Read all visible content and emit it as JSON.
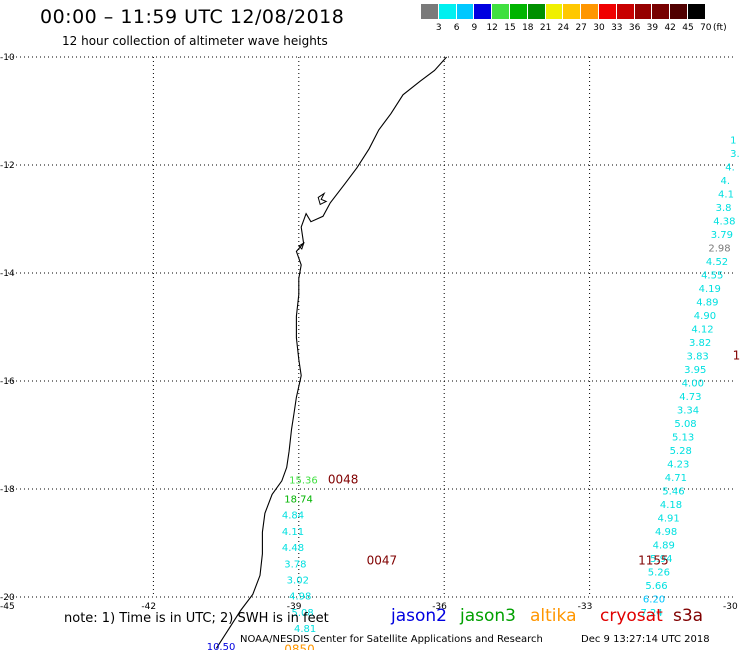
{
  "header": {
    "title": "00:00 – 11:59 UTC 12/08/2018",
    "subtitle": "12 hour collection of altimeter wave heights"
  },
  "colorbar": {
    "labels": [
      "3",
      "6",
      "9",
      "12",
      "15",
      "18",
      "21",
      "24",
      "27",
      "30",
      "33",
      "36",
      "39",
      "42",
      "45",
      "70"
    ],
    "unit": "(ft)",
    "colors": [
      "#7a7a7a",
      "#00f0f0",
      "#00c8ff",
      "#0000e0",
      "#40e040",
      "#00b400",
      "#009000",
      "#f0f000",
      "#ffc800",
      "#ff9600",
      "#f00000",
      "#c80000",
      "#960000",
      "#780000",
      "#500000",
      "#000000"
    ]
  },
  "map": {
    "lat_ticks": [
      "-10",
      "-12",
      "-14",
      "-16",
      "-18",
      "-20"
    ],
    "lon_ticks": [
      "-45",
      "-42",
      "-39",
      "-36",
      "-33",
      "-30"
    ],
    "lon_range": [
      -45,
      -30
    ],
    "lat_range": [
      -20,
      -10
    ],
    "grid": "dotted"
  },
  "observations": [
    {
      "lon": -30.1,
      "lat": -11.6,
      "text": "1",
      "color": "#00e0e0"
    },
    {
      "lon": -30.1,
      "lat": -11.85,
      "text": "3.",
      "color": "#00e0e0"
    },
    {
      "lon": -30.2,
      "lat": -12.1,
      "text": "4.",
      "color": "#00e0e0"
    },
    {
      "lon": -30.3,
      "lat": -12.35,
      "text": "4.",
      "color": "#00e0e0"
    },
    {
      "lon": -30.35,
      "lat": -12.6,
      "text": "4.1",
      "color": "#00e0e0"
    },
    {
      "lon": -30.4,
      "lat": -12.85,
      "text": "3.8",
      "color": "#00e0e0"
    },
    {
      "lon": -30.45,
      "lat": -13.1,
      "text": "4.38",
      "color": "#00e0e0"
    },
    {
      "lon": -30.5,
      "lat": -13.35,
      "text": "3.79",
      "color": "#00e0e0"
    },
    {
      "lon": -30.55,
      "lat": -13.6,
      "text": "2.98",
      "color": "#7a7a7a"
    },
    {
      "lon": -30.6,
      "lat": -13.85,
      "text": "4.52",
      "color": "#00e0e0"
    },
    {
      "lon": -30.7,
      "lat": -14.1,
      "text": "4.55",
      "color": "#00e0e0"
    },
    {
      "lon": -30.75,
      "lat": -14.35,
      "text": "4.19",
      "color": "#00e0e0"
    },
    {
      "lon": -30.8,
      "lat": -14.6,
      "text": "4.89",
      "color": "#00e0e0"
    },
    {
      "lon": -30.85,
      "lat": -14.85,
      "text": "4.90",
      "color": "#00e0e0"
    },
    {
      "lon": -30.9,
      "lat": -15.1,
      "text": "4.12",
      "color": "#00e0e0"
    },
    {
      "lon": -30.95,
      "lat": -15.35,
      "text": "3.82",
      "color": "#00e0e0"
    },
    {
      "lon": -31.0,
      "lat": -15.6,
      "text": "3.83",
      "color": "#00e0e0"
    },
    {
      "lon": -31.05,
      "lat": -15.85,
      "text": "3.95",
      "color": "#00e0e0"
    },
    {
      "lon": -31.1,
      "lat": -16.1,
      "text": "4.00",
      "color": "#00e0e0"
    },
    {
      "lon": -31.15,
      "lat": -16.35,
      "text": "4.73",
      "color": "#00e0e0"
    },
    {
      "lon": -31.2,
      "lat": -16.6,
      "text": "3.34",
      "color": "#00e0e0"
    },
    {
      "lon": -31.25,
      "lat": -16.85,
      "text": "5.08",
      "color": "#00e0e0"
    },
    {
      "lon": -31.3,
      "lat": -17.1,
      "text": "5.13",
      "color": "#00e0e0"
    },
    {
      "lon": -31.35,
      "lat": -17.35,
      "text": "5.28",
      "color": "#00e0e0"
    },
    {
      "lon": -31.4,
      "lat": -17.6,
      "text": "4.23",
      "color": "#00e0e0"
    },
    {
      "lon": -31.45,
      "lat": -17.85,
      "text": "4.71",
      "color": "#00e0e0"
    },
    {
      "lon": -31.5,
      "lat": -18.1,
      "text": "5.46",
      "color": "#00e0e0"
    },
    {
      "lon": -31.55,
      "lat": -18.35,
      "text": "4.18",
      "color": "#00e0e0"
    },
    {
      "lon": -31.6,
      "lat": -18.6,
      "text": "4.91",
      "color": "#00e0e0"
    },
    {
      "lon": -31.65,
      "lat": -18.85,
      "text": "4.98",
      "color": "#00e0e0"
    },
    {
      "lon": -31.7,
      "lat": -19.1,
      "text": "4.89",
      "color": "#00e0e0"
    },
    {
      "lon": -31.75,
      "lat": -19.35,
      "text": "5.94",
      "color": "#00e0e0"
    },
    {
      "lon": -31.8,
      "lat": -19.6,
      "text": "5.26",
      "color": "#00e0e0"
    },
    {
      "lon": -31.85,
      "lat": -19.85,
      "text": "5.66",
      "color": "#00e0e0"
    },
    {
      "lon": -31.9,
      "lat": -20.1,
      "text": "6.20",
      "color": "#00c8ff"
    },
    {
      "lon": -31.95,
      "lat": -20.35,
      "text": "7.24",
      "color": "#00e0e0"
    },
    {
      "lon": -39.2,
      "lat": -17.9,
      "text": "15.36",
      "color": "#40e040"
    },
    {
      "lon": -39.3,
      "lat": -18.25,
      "text": "18.74",
      "color": "#00b400"
    },
    {
      "lon": -39.35,
      "lat": -18.55,
      "text": "4.84",
      "color": "#00e0e0"
    },
    {
      "lon": -39.35,
      "lat": -18.85,
      "text": "4.11",
      "color": "#00e0e0"
    },
    {
      "lon": -39.35,
      "lat": -19.15,
      "text": "4.48",
      "color": "#00e0e0"
    },
    {
      "lon": -39.3,
      "lat": -19.45,
      "text": "3.78",
      "color": "#00e0e0"
    },
    {
      "lon": -39.25,
      "lat": -19.75,
      "text": "3.02",
      "color": "#00e0e0"
    },
    {
      "lon": -39.2,
      "lat": -20.05,
      "text": "4.98",
      "color": "#00e0e0"
    },
    {
      "lon": -39.15,
      "lat": -20.35,
      "text": "5.08",
      "color": "#00e0e0"
    },
    {
      "lon": -39.1,
      "lat": -20.65,
      "text": "4.81",
      "color": "#00e0e0"
    },
    {
      "lon": -40.9,
      "lat": -20.98,
      "text": "10.50",
      "color": "#0000e0"
    }
  ],
  "pass_times": [
    {
      "lon": -38.4,
      "lat": -17.9,
      "text": "0048",
      "color": "#800000"
    },
    {
      "lon": -37.6,
      "lat": -19.4,
      "text": "0047",
      "color": "#800000"
    },
    {
      "lon": -32.0,
      "lat": -19.4,
      "text": "1155",
      "color": "#800000"
    },
    {
      "lon": -30.05,
      "lat": -15.6,
      "text": "1",
      "color": "#800000"
    },
    {
      "lon": -39.3,
      "lat": -21.05,
      "text": "0850",
      "color": "#ff9600"
    }
  ],
  "footer": {
    "note": "note: 1) Time is in UTC; 2) SWH is in feet",
    "satellites": [
      {
        "name": "jason2",
        "color": "#0000e0"
      },
      {
        "name": "jason3",
        "color": "#00a000"
      },
      {
        "name": "altika",
        "color": "#ff9600"
      },
      {
        "name": "cryosat",
        "color": "#e00000"
      },
      {
        "name": "s3a",
        "color": "#800000"
      }
    ],
    "credit": "NOAA/NESDIS Center for Satellite Applications and Research",
    "timestamp": "Dec  9 13:27:14 UTC 2018"
  }
}
